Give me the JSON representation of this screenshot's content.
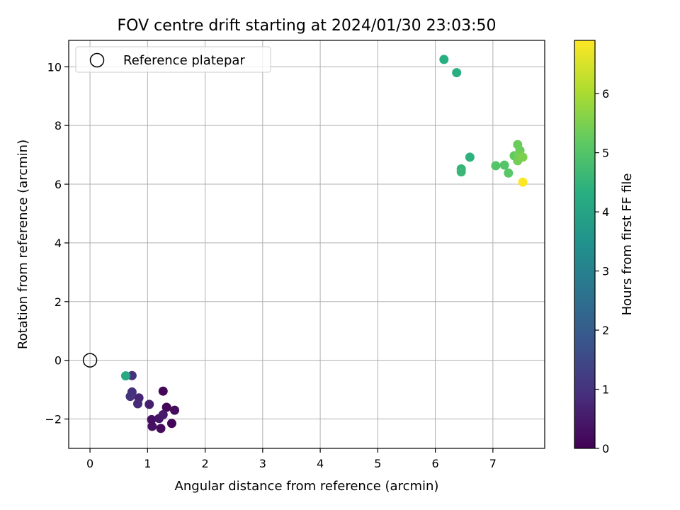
{
  "chart_data": {
    "type": "scatter",
    "title": "FOV centre drift starting at 2024/01/30 23:03:50",
    "xlabel": "Angular distance from reference (arcmin)",
    "ylabel": "Rotation from reference (arcmin)",
    "xlim": [
      -0.37,
      7.9
    ],
    "ylim": [
      -3.0,
      10.9
    ],
    "xticks": [
      0,
      1,
      2,
      3,
      4,
      5,
      6,
      7
    ],
    "yticks": [
      -2,
      0,
      2,
      4,
      6,
      8,
      10
    ],
    "ytick_labels": [
      "−2",
      "0",
      "2",
      "4",
      "6",
      "8",
      "10"
    ],
    "grid": true,
    "legend": {
      "location": "upper-left",
      "entries": [
        "Reference platepar"
      ]
    },
    "reference_point": {
      "x": 0,
      "y": 0
    },
    "colorbar": {
      "label": "Hours from first FF file",
      "colormap": "viridis",
      "range": [
        0,
        6.9
      ],
      "ticks": [
        0,
        1,
        2,
        3,
        4,
        5,
        6
      ]
    },
    "points": [
      {
        "x": 1.27,
        "y": -1.05,
        "c": 0.1
      },
      {
        "x": 1.33,
        "y": -1.6,
        "c": 0.1
      },
      {
        "x": 1.47,
        "y": -1.7,
        "c": 0.2
      },
      {
        "x": 1.42,
        "y": -2.15,
        "c": 0.1
      },
      {
        "x": 1.23,
        "y": -2.32,
        "c": 0.2
      },
      {
        "x": 1.08,
        "y": -2.25,
        "c": 0.3
      },
      {
        "x": 1.07,
        "y": -2.02,
        "c": 0.3
      },
      {
        "x": 1.2,
        "y": -1.98,
        "c": 0.4
      },
      {
        "x": 1.27,
        "y": -1.85,
        "c": 0.5
      },
      {
        "x": 1.03,
        "y": -1.5,
        "c": 0.6
      },
      {
        "x": 0.85,
        "y": -1.28,
        "c": 0.7
      },
      {
        "x": 0.83,
        "y": -1.48,
        "c": 0.8
      },
      {
        "x": 0.73,
        "y": -1.08,
        "c": 0.9
      },
      {
        "x": 0.7,
        "y": -1.23,
        "c": 1.0
      },
      {
        "x": 0.73,
        "y": -0.52,
        "c": 1.0
      },
      {
        "x": 0.62,
        "y": -0.53,
        "c": 4.2
      },
      {
        "x": 6.15,
        "y": 10.25,
        "c": 4.3
      },
      {
        "x": 6.37,
        "y": 9.8,
        "c": 4.3
      },
      {
        "x": 6.6,
        "y": 6.92,
        "c": 4.4
      },
      {
        "x": 6.45,
        "y": 6.52,
        "c": 4.5
      },
      {
        "x": 6.45,
        "y": 6.42,
        "c": 4.6
      },
      {
        "x": 7.05,
        "y": 6.63,
        "c": 5.0
      },
      {
        "x": 7.2,
        "y": 6.65,
        "c": 5.0
      },
      {
        "x": 7.27,
        "y": 6.38,
        "c": 5.1
      },
      {
        "x": 7.37,
        "y": 6.97,
        "c": 5.2
      },
      {
        "x": 7.43,
        "y": 7.35,
        "c": 5.3
      },
      {
        "x": 7.47,
        "y": 7.15,
        "c": 5.3
      },
      {
        "x": 7.45,
        "y": 7.0,
        "c": 5.4
      },
      {
        "x": 7.43,
        "y": 6.8,
        "c": 5.4
      },
      {
        "x": 7.52,
        "y": 6.92,
        "c": 5.5
      },
      {
        "x": 7.52,
        "y": 6.07,
        "c": 6.9
      }
    ]
  }
}
